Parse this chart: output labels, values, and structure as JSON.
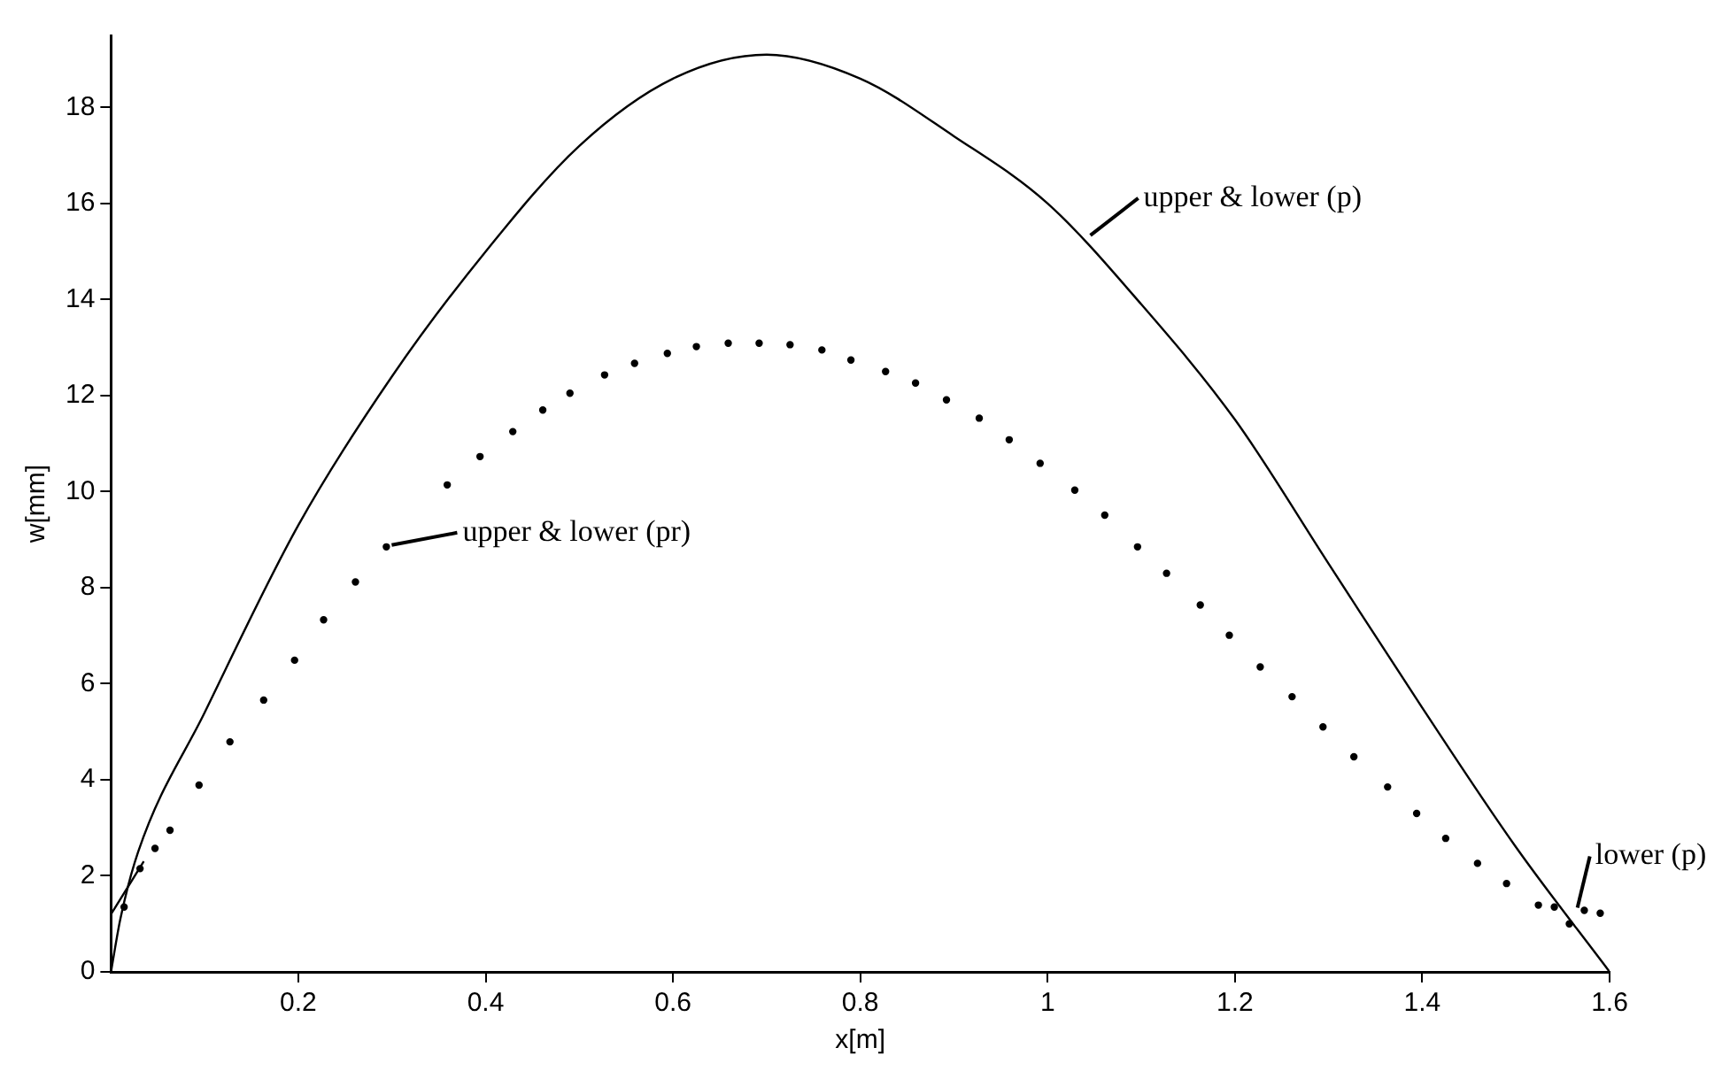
{
  "chart_data": {
    "type": "line",
    "xlabel": "x[m]",
    "ylabel": "w[mm]",
    "xlim": [
      0,
      1.6
    ],
    "ylim": [
      0,
      19.5
    ],
    "xticks": [
      0.2,
      0.4,
      0.6,
      0.8,
      1,
      1.2,
      1.4,
      1.6
    ],
    "yticks": [
      0,
      2,
      4,
      6,
      8,
      10,
      12,
      14,
      16,
      18
    ],
    "grid": false,
    "legend": false,
    "series": [
      {
        "color": "#000000",
        "marker": "none",
        "line_style": "solid",
        "x": [
          0,
          0.01,
          0.029,
          0.1,
          0.2,
          0.3,
          0.4,
          0.5,
          0.6,
          0.7,
          0.8,
          0.9,
          1.0,
          1.1,
          1.2,
          1.3,
          1.4,
          1.5,
          1.6
        ],
        "values": [
          0,
          1.1,
          2.5,
          5.4,
          9.3,
          12.4,
          15.0,
          17.2,
          18.6,
          19.1,
          18.6,
          17.4,
          16.0,
          13.9,
          11.5,
          8.5,
          5.5,
          2.6,
          0
        ]
      },
      {
        "color": "#000000",
        "marker": "none",
        "line_style": "solid",
        "x": [
          0,
          0.035
        ],
        "values": [
          1.2,
          2.3
        ]
      },
      {
        "type": "scatter",
        "color": "#000000",
        "marker": "circle",
        "x": [
          0.014,
          0.031,
          0.047,
          0.063,
          0.094,
          0.127,
          0.163,
          0.196,
          0.227,
          0.261,
          0.294,
          0.359,
          0.394,
          0.429,
          0.461,
          0.49,
          0.527,
          0.559,
          0.594,
          0.625,
          0.659,
          0.692,
          0.725,
          0.759,
          0.79,
          0.827,
          0.859,
          0.892,
          0.927,
          0.959,
          0.992,
          1.029,
          1.061,
          1.096,
          1.127,
          1.163,
          1.194,
          1.227,
          1.261,
          1.294,
          1.327,
          1.363,
          1.394,
          1.425,
          1.459,
          1.49,
          1.524,
          1.541,
          1.557,
          1.573,
          1.59
        ],
        "values": [
          1.35,
          2.15,
          2.57,
          2.95,
          3.89,
          4.79,
          5.66,
          6.49,
          7.33,
          8.12,
          8.85,
          10.14,
          10.73,
          11.25,
          11.7,
          12.05,
          12.43,
          12.67,
          12.88,
          13.02,
          13.09,
          13.09,
          13.06,
          12.95,
          12.74,
          12.5,
          12.26,
          11.91,
          11.53,
          11.08,
          10.59,
          10.03,
          9.51,
          8.85,
          8.3,
          7.64,
          7.01,
          6.35,
          5.73,
          5.1,
          4.48,
          3.85,
          3.3,
          2.78,
          2.26,
          1.84,
          1.39,
          1.35,
          1.0,
          1.28,
          1.22
        ]
      }
    ],
    "annotations": [
      {
        "text": "upper & lower (p)",
        "x": 1.04,
        "y": 15.3
      },
      {
        "text": "upper & lower (pr)",
        "x": 0.294,
        "y": 8.85
      },
      {
        "text": "lower (p)",
        "x": 1.56,
        "y": 1.3
      }
    ]
  }
}
